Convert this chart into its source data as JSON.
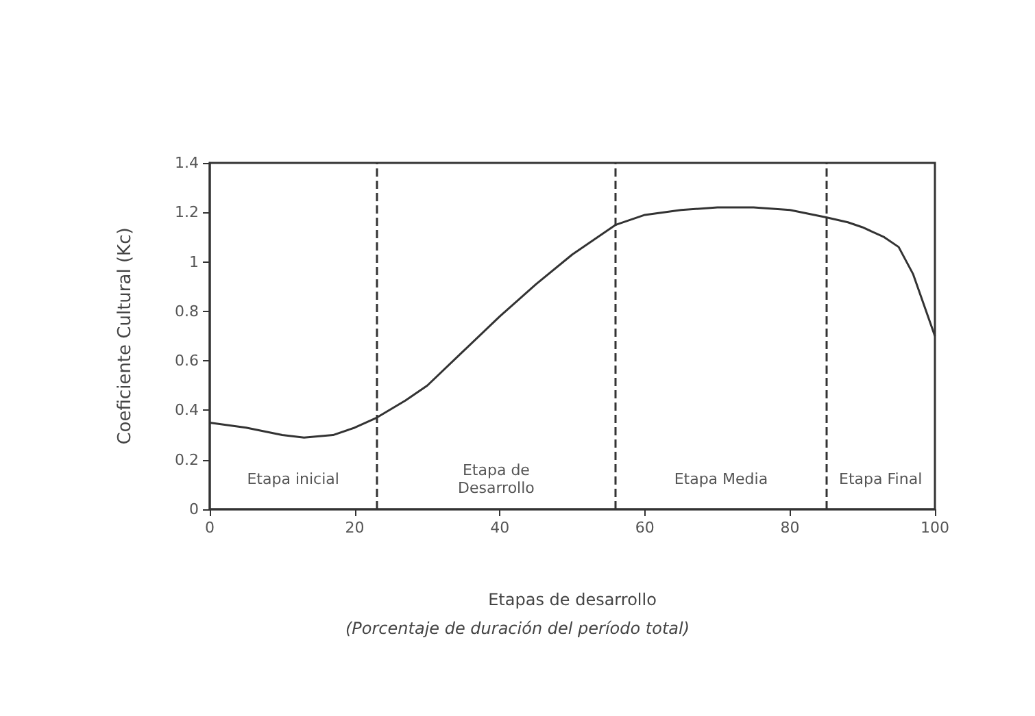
{
  "chart_data": {
    "type": "line",
    "xlabel": "Etapas de desarrollo",
    "subtitle": "(Porcentaje de duración del período total)",
    "ylabel": "Coeficiente Cultural (Kc)",
    "x": [
      0,
      5,
      10,
      13,
      17,
      20,
      23,
      27,
      30,
      35,
      40,
      45,
      50,
      53,
      56,
      60,
      65,
      70,
      75,
      80,
      85,
      88,
      90,
      93,
      95,
      97,
      100
    ],
    "series": [
      {
        "color": "#333333",
        "values": [
          0.35,
          0.33,
          0.3,
          0.29,
          0.3,
          0.33,
          0.37,
          0.44,
          0.5,
          0.64,
          0.78,
          0.91,
          1.03,
          1.09,
          1.15,
          1.19,
          1.21,
          1.22,
          1.22,
          1.21,
          1.18,
          1.16,
          1.14,
          1.1,
          1.06,
          0.95,
          0.7
        ]
      }
    ],
    "xlim": [
      0,
      100
    ],
    "xticks": [
      0,
      20,
      40,
      60,
      80,
      100
    ],
    "ylim": [
      0,
      1.4
    ],
    "yticks": [
      0,
      0.2,
      0.4,
      0.6,
      0.8,
      1,
      1.2,
      1.4
    ],
    "ref_lines": [
      {
        "axis": "x",
        "value": 23,
        "line_style": "dashed"
      },
      {
        "axis": "x",
        "value": 56,
        "line_style": "dashed"
      },
      {
        "axis": "x",
        "value": 85,
        "line_style": "dashed"
      }
    ],
    "annotations": [
      "Etapa inicial",
      "Etapa de\nDesarrollo",
      "Etapa Media",
      "Etapa Final"
    ],
    "grid": false,
    "marker": "none",
    "line_style": "solid"
  }
}
